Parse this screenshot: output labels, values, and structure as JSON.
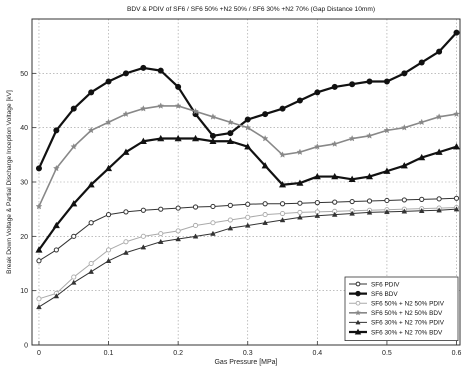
{
  "chart_data": {
    "type": "line",
    "title": "BDV & PDIV of SF6 / SF6 50% +N2 50%  / SF6 30% +N2 70% (Gap Distance   10mm)",
    "xlabel": "Gas Pressure [MPa]",
    "ylabel": "Break Down Voltage & Partial Discharge Inception Voltage [kV]",
    "xlim": [
      -0.01,
      0.605
    ],
    "ylim": [
      0,
      60
    ],
    "x_ticks": [
      0,
      0.1,
      0.2,
      0.3,
      0.4,
      0.5,
      0.6
    ],
    "x_tick_labels": [
      "0",
      "0.1",
      "0.2",
      "0.3",
      "0.4",
      "0.5",
      "0.6"
    ],
    "y_ticks": [
      0,
      10,
      20,
      30,
      40,
      50
    ],
    "y_tick_labels": [
      "0",
      "10",
      "20",
      "30",
      "40",
      "50"
    ],
    "grid": true,
    "legend_position": "bottom-right",
    "x": [
      0,
      0.025,
      0.05,
      0.075,
      0.1,
      0.125,
      0.15,
      0.175,
      0.2,
      0.225,
      0.25,
      0.275,
      0.3,
      0.325,
      0.35,
      0.375,
      0.4,
      0.425,
      0.45,
      0.475,
      0.5,
      0.525,
      0.55,
      0.575,
      0.6
    ],
    "series": [
      {
        "name": "SF6 PDIV",
        "color": "#333333",
        "marker": "circle-open",
        "values": [
          15.5,
          17.5,
          20,
          22.5,
          24,
          24.5,
          24.8,
          25,
          25.2,
          25.4,
          25.5,
          25.7,
          25.9,
          26,
          26,
          26.1,
          26.2,
          26.3,
          26.4,
          26.5,
          26.6,
          26.7,
          26.8,
          26.9,
          27
        ]
      },
      {
        "name": "SF6 BDV",
        "color": "#111111",
        "marker": "circle-filled",
        "values": [
          32.5,
          39.5,
          43.5,
          46.5,
          48.5,
          50,
          51,
          50.5,
          47.5,
          42.5,
          38.5,
          39,
          41.5,
          42.5,
          43.5,
          45,
          46.5,
          47.5,
          48,
          48.5,
          48.5,
          50,
          52,
          54,
          57.5
        ]
      },
      {
        "name": "SF6 50% + N2 50% PDIV",
        "color": "#aaaaaa",
        "marker": "circle-open-light",
        "values": [
          8.5,
          9.5,
          12.5,
          15,
          17.5,
          19,
          20,
          20.5,
          21,
          22,
          22.5,
          23,
          23.5,
          24,
          24.2,
          24.4,
          24.5,
          24.6,
          24.7,
          24.8,
          24.9,
          25,
          25.1,
          25.2,
          25.3
        ]
      },
      {
        "name": "SF6 50% + N2 50% BDV",
        "color": "#888888",
        "marker": "star",
        "values": [
          25.5,
          32.5,
          36.5,
          39.5,
          41,
          42.5,
          43.5,
          44,
          44,
          43,
          42,
          41,
          40,
          38,
          35,
          35.5,
          36.5,
          37,
          38,
          38.5,
          39.5,
          40,
          41,
          42,
          42.5
        ]
      },
      {
        "name": "SF6 30% + N2 70% PDIV",
        "color": "#333333",
        "marker": "triangle",
        "values": [
          7,
          9,
          11.5,
          13.5,
          15.5,
          17,
          18,
          19,
          19.5,
          20,
          20.5,
          21.5,
          22,
          22.5,
          23,
          23.5,
          23.8,
          24,
          24.2,
          24.4,
          24.5,
          24.6,
          24.7,
          24.8,
          25
        ]
      },
      {
        "name": "SF6 30% + N2 70% BDV",
        "color": "#111111",
        "marker": "triangle-filled",
        "values": [
          17.5,
          22,
          26,
          29.5,
          32.5,
          35.5,
          37.5,
          38,
          38,
          38,
          37.5,
          37.5,
          36.5,
          33,
          29.5,
          29.8,
          31,
          31,
          30.5,
          31,
          32,
          33,
          34.5,
          35.5,
          36.5
        ]
      }
    ]
  }
}
